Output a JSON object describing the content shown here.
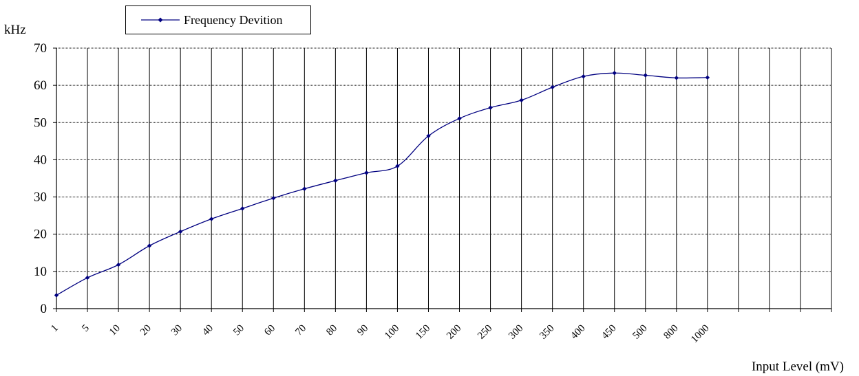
{
  "chart_data": {
    "type": "line",
    "legend": {
      "label": "Frequency Devition",
      "position": "top-left"
    },
    "y_unit": "kHz",
    "xlabel": "Input Level (mV)",
    "ylim": [
      0,
      70
    ],
    "yticks": [
      0,
      10,
      20,
      30,
      40,
      50,
      60,
      70
    ],
    "grid": true,
    "categories": [
      "1",
      "5",
      "10",
      "20",
      "30",
      "40",
      "50",
      "60",
      "70",
      "80",
      "90",
      "100",
      "150",
      "200",
      "250",
      "300",
      "350",
      "400",
      "450",
      "500",
      "800",
      "1000"
    ],
    "empty_categories": 4,
    "series": [
      {
        "name": "Frequency Devition",
        "color": "#000080",
        "marker": "diamond",
        "smooth": true,
        "values": [
          3.6,
          8.3,
          11.8,
          16.9,
          20.7,
          24.1,
          26.9,
          29.7,
          32.2,
          34.4,
          36.5,
          38.3,
          46.4,
          51.1,
          54.0,
          56.0,
          59.5,
          62.4,
          63.3,
          62.7,
          62.0,
          62.1
        ]
      }
    ]
  }
}
